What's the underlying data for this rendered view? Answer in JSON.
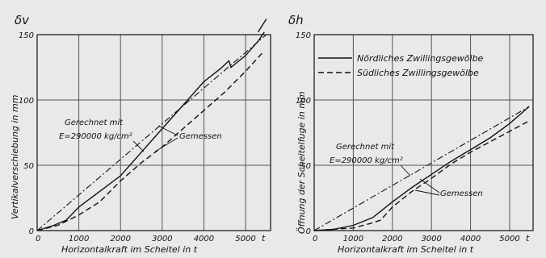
{
  "chart_data": [
    {
      "id": "left",
      "type": "line",
      "ylabel_symbol": "δv",
      "ylabel": "Vertikalverschiebung in mm",
      "xlabel": "Horizontalkraft im Scheitel in t",
      "x_unit_tick": "t",
      "xlim": [
        0,
        5600
      ],
      "ylim": [
        0,
        150
      ],
      "x_ticks": [
        0,
        1000,
        2000,
        3000,
        4000,
        5000
      ],
      "x_tick_labels": [
        "0",
        "1000",
        "2000",
        "3000",
        "4000",
        "5000"
      ],
      "y_ticks": [
        0,
        50,
        100,
        150
      ],
      "y_tick_labels": [
        "0",
        "50",
        "100",
        "150"
      ],
      "grid": true,
      "series": [
        {
          "style": "solid",
          "x": [
            0,
            400,
            700,
            1000,
            1500,
            2000,
            2500,
            3000,
            3500,
            4000,
            4400,
            4600,
            4650,
            5000,
            5300,
            5450
          ],
          "y": [
            0,
            4,
            8,
            18,
            30,
            42,
            60,
            78,
            96,
            114,
            124,
            130,
            125,
            134,
            145,
            152
          ]
        },
        {
          "style": "dashed",
          "x": [
            0,
            500,
            1000,
            1500,
            2000,
            2500,
            3000,
            3500,
            4000,
            4500,
            5000,
            5400
          ],
          "y": [
            0,
            4,
            12,
            22,
            38,
            52,
            64,
            78,
            92,
            106,
            122,
            136
          ]
        },
        {
          "style": "dashdot",
          "x": [
            0,
            5500
          ],
          "y": [
            0,
            150
          ]
        }
      ],
      "overflow_x": [
        5300,
        5500
      ],
      "overflow_y": [
        152,
        162
      ],
      "annotations": {
        "computed": "Gerechnet mit",
        "formula": "E=290000 kg/cm²",
        "measured": "Gemessen"
      }
    },
    {
      "id": "right",
      "type": "line",
      "ylabel_symbol": "δh",
      "ylabel": "Öffnung der Scheitelfuge in mm",
      "xlabel": "Horizontalkraft im Scheitel in t",
      "x_unit_tick": "t",
      "xlim": [
        0,
        5600
      ],
      "ylim": [
        0,
        150
      ],
      "x_ticks": [
        0,
        1000,
        2000,
        3000,
        4000,
        5000
      ],
      "x_tick_labels": [
        "0",
        "1000",
        "2000",
        "3000",
        "4000",
        "5000"
      ],
      "y_ticks": [
        0,
        50,
        100,
        150
      ],
      "y_tick_labels": [
        "0",
        "50",
        "100",
        "150"
      ],
      "grid": true,
      "legend": [
        {
          "style": "solid",
          "label": "Nördliches Zwillingsgewölbe"
        },
        {
          "style": "dashed",
          "label": "Südliches Zwillingsgewölbe"
        }
      ],
      "series": [
        {
          "style": "solid",
          "x": [
            0,
            500,
            1000,
            1500,
            2000,
            2500,
            3000,
            3500,
            4000,
            4500,
            5000,
            5500
          ],
          "y": [
            0,
            1,
            4,
            10,
            22,
            33,
            43,
            53,
            62,
            71,
            82,
            95
          ]
        },
        {
          "style": "dashed",
          "x": [
            0,
            500,
            1000,
            1500,
            1700,
            2000,
            2500,
            3000,
            3500,
            4000,
            4500,
            5000,
            5500
          ],
          "y": [
            0,
            1,
            2,
            6,
            8,
            18,
            30,
            40,
            51,
            60,
            68,
            76,
            84
          ]
        },
        {
          "style": "dashdot",
          "x": [
            0,
            5500
          ],
          "y": [
            0,
            95
          ]
        }
      ],
      "annotations": {
        "computed": "Gerechnet mit",
        "formula": "E=290000 kg/cm²",
        "measured": "Gemessen"
      }
    }
  ]
}
